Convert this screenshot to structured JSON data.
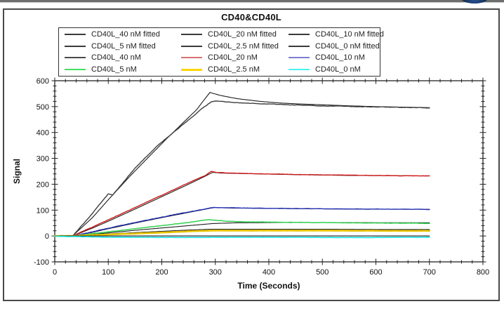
{
  "decor": {
    "top_accent_color": "#16335f",
    "top_rule_color": "#6e6e6e"
  },
  "chart_data": {
    "type": "line",
    "title": "CD40&CD40L",
    "xlabel": "Time (Seconds)",
    "ylabel": "Signal",
    "xlim": [
      0,
      800
    ],
    "ylim": [
      -100,
      600
    ],
    "x_ticks": [
      0,
      100,
      200,
      300,
      400,
      500,
      600,
      700,
      800
    ],
    "y_ticks": [
      -100,
      0,
      100,
      200,
      300,
      400,
      500,
      600
    ],
    "x_minor_step": 20,
    "y_minor_step": 20,
    "grid": false,
    "legend_position": "top-left",
    "legend": [
      {
        "label": "CD40L_40 nM fitted",
        "color": "#3a3a3a",
        "lw": 2
      },
      {
        "label": "CD40L_20 nM fitted",
        "color": "#3a3a3a",
        "lw": 2
      },
      {
        "label": "CD40L_10 nM fitted",
        "color": "#3a3a3a",
        "lw": 2
      },
      {
        "label": "CD40L_5 nM fitted",
        "color": "#3a3a3a",
        "lw": 2
      },
      {
        "label": "CD40L_2.5 nM fitted",
        "color": "#3a3a3a",
        "lw": 2
      },
      {
        "label": "CD40L_0 nM fitted",
        "color": "#3a3a3a",
        "lw": 2
      },
      {
        "label": "CD40L_40 nM",
        "color": "#4a4a4a",
        "lw": 2
      },
      {
        "label": "CD40L_20 nM",
        "color": "#d87272",
        "lw": 2
      },
      {
        "label": "CD40L_10 nM",
        "color": "#7e7ed2",
        "lw": 2
      },
      {
        "label": "CD40L_5 nM",
        "color": "#46e060",
        "lw": 2
      },
      {
        "label": "CD40L_2.5 nM",
        "color": "#ffd400",
        "lw": 3
      },
      {
        "label": "CD40L_0 nM",
        "color": "#4df2f2",
        "lw": 2
      }
    ],
    "series": [
      {
        "name": "CD40L_40 nM fitted",
        "role": "fitted",
        "color": "#1c1c1c",
        "width": 1.1,
        "noise": 0,
        "points": [
          [
            0,
            0
          ],
          [
            33,
            0
          ],
          [
            70,
            70
          ],
          [
            100,
            140
          ],
          [
            140,
            230
          ],
          [
            180,
            315
          ],
          [
            210,
            378
          ],
          [
            240,
            438
          ],
          [
            265,
            488
          ],
          [
            285,
            542
          ],
          [
            290,
            555
          ],
          [
            296,
            551
          ],
          [
            310,
            543
          ],
          [
            340,
            531
          ],
          [
            380,
            521
          ],
          [
            420,
            514
          ],
          [
            460,
            510
          ],
          [
            500,
            507
          ],
          [
            550,
            503
          ],
          [
            600,
            500
          ],
          [
            650,
            498
          ],
          [
            700,
            496
          ]
        ]
      },
      {
        "name": "CD40L_40 nM",
        "role": "raw",
        "color": "#3d3d3d",
        "width": 1.4,
        "noise": 2.0,
        "points": [
          [
            0,
            0
          ],
          [
            33,
            0
          ],
          [
            60,
            62
          ],
          [
            100,
            162
          ],
          [
            108,
            158
          ],
          [
            150,
            262
          ],
          [
            190,
            345
          ],
          [
            220,
            398
          ],
          [
            250,
            448
          ],
          [
            275,
            492
          ],
          [
            292,
            518
          ],
          [
            300,
            522
          ],
          [
            315,
            519
          ],
          [
            350,
            514
          ],
          [
            400,
            510
          ],
          [
            450,
            506
          ],
          [
            500,
            503
          ],
          [
            550,
            501
          ],
          [
            600,
            499
          ],
          [
            650,
            497
          ],
          [
            700,
            495
          ]
        ]
      },
      {
        "name": "CD40L_20 nM fitted",
        "role": "fitted",
        "color": "#1c1c1c",
        "width": 1.1,
        "noise": 0,
        "points": [
          [
            0,
            0
          ],
          [
            33,
            0
          ],
          [
            70,
            30
          ],
          [
            100,
            57
          ],
          [
            150,
            104
          ],
          [
            200,
            152
          ],
          [
            250,
            200
          ],
          [
            280,
            230
          ],
          [
            295,
            246
          ],
          [
            312,
            243
          ],
          [
            380,
            240
          ],
          [
            450,
            237
          ],
          [
            550,
            234
          ],
          [
            640,
            233
          ],
          [
            700,
            232
          ]
        ]
      },
      {
        "name": "CD40L_20 nM",
        "role": "raw",
        "color": "#cf1717",
        "width": 1.4,
        "noise": 1.6,
        "points": [
          [
            0,
            0
          ],
          [
            33,
            0
          ],
          [
            70,
            34
          ],
          [
            100,
            62
          ],
          [
            150,
            110
          ],
          [
            200,
            158
          ],
          [
            250,
            206
          ],
          [
            282,
            234
          ],
          [
            292,
            249
          ],
          [
            302,
            246
          ],
          [
            340,
            242
          ],
          [
            400,
            240
          ],
          [
            470,
            237
          ],
          [
            550,
            235
          ],
          [
            630,
            233
          ],
          [
            700,
            232
          ]
        ]
      },
      {
        "name": "CD40L_10 nM fitted",
        "role": "fitted",
        "color": "#1c1c1c",
        "width": 1.1,
        "noise": 0,
        "points": [
          [
            0,
            0
          ],
          [
            33,
            0
          ],
          [
            70,
            14
          ],
          [
            100,
            28
          ],
          [
            150,
            50
          ],
          [
            200,
            71
          ],
          [
            250,
            91
          ],
          [
            285,
            105
          ],
          [
            298,
            110
          ],
          [
            330,
            108
          ],
          [
            420,
            106
          ],
          [
            550,
            104
          ],
          [
            700,
            103
          ]
        ]
      },
      {
        "name": "CD40L_10 nM",
        "role": "raw",
        "color": "#2430b4",
        "width": 1.4,
        "noise": 1.4,
        "points": [
          [
            0,
            0
          ],
          [
            33,
            0
          ],
          [
            70,
            16
          ],
          [
            100,
            30
          ],
          [
            150,
            52
          ],
          [
            200,
            73
          ],
          [
            250,
            93
          ],
          [
            283,
            105
          ],
          [
            296,
            111
          ],
          [
            320,
            109
          ],
          [
            400,
            107
          ],
          [
            500,
            105
          ],
          [
            600,
            104
          ],
          [
            700,
            103
          ]
        ]
      },
      {
        "name": "CD40L_5 nM fitted",
        "role": "fitted",
        "color": "#1c1c1c",
        "width": 1.1,
        "noise": 0,
        "points": [
          [
            0,
            0
          ],
          [
            33,
            0
          ],
          [
            70,
            6
          ],
          [
            100,
            12
          ],
          [
            150,
            22
          ],
          [
            200,
            31
          ],
          [
            250,
            40
          ],
          [
            295,
            48
          ],
          [
            340,
            51
          ],
          [
            420,
            52
          ],
          [
            520,
            52
          ],
          [
            620,
            51
          ],
          [
            700,
            51
          ]
        ]
      },
      {
        "name": "CD40L_5 nM",
        "role": "raw",
        "color": "#2ed04e",
        "width": 1.5,
        "noise": 1.2,
        "points": [
          [
            0,
            0
          ],
          [
            33,
            0
          ],
          [
            70,
            9
          ],
          [
            100,
            16
          ],
          [
            150,
            28
          ],
          [
            200,
            40
          ],
          [
            250,
            52
          ],
          [
            272,
            60
          ],
          [
            286,
            63
          ],
          [
            300,
            61
          ],
          [
            322,
            57
          ],
          [
            355,
            55
          ],
          [
            420,
            53
          ],
          [
            500,
            52
          ],
          [
            600,
            50
          ],
          [
            700,
            49
          ]
        ]
      },
      {
        "name": "CD40L_2.5 nM fitted",
        "role": "fitted",
        "color": "#1c1c1c",
        "width": 1.1,
        "noise": 0,
        "points": [
          [
            0,
            0
          ],
          [
            33,
            0
          ],
          [
            100,
            8
          ],
          [
            170,
            15
          ],
          [
            240,
            22
          ],
          [
            290,
            26
          ],
          [
            360,
            26
          ],
          [
            500,
            26
          ],
          [
            620,
            25
          ],
          [
            700,
            25
          ]
        ]
      },
      {
        "name": "CD40L_2.5 nM",
        "role": "raw",
        "color": "#e9c400",
        "width": 2.6,
        "noise": 0.9,
        "points": [
          [
            0,
            0
          ],
          [
            33,
            0
          ],
          [
            100,
            6
          ],
          [
            170,
            11
          ],
          [
            240,
            17
          ],
          [
            295,
            21
          ],
          [
            380,
            21
          ],
          [
            500,
            21
          ],
          [
            620,
            20
          ],
          [
            700,
            20
          ]
        ]
      },
      {
        "name": "CD40L_0 nM fitted",
        "role": "fitted",
        "color": "#1c1c1c",
        "width": 1.1,
        "noise": 0,
        "points": [
          [
            0,
            0
          ],
          [
            700,
            0
          ]
        ]
      },
      {
        "name": "CD40L_0 nM",
        "role": "raw",
        "color": "#17e3e3",
        "width": 1.6,
        "noise": 0.9,
        "points": [
          [
            0,
            -1
          ],
          [
            33,
            -2
          ],
          [
            80,
            -4
          ],
          [
            150,
            -5
          ],
          [
            250,
            -6
          ],
          [
            300,
            -5
          ],
          [
            420,
            -5
          ],
          [
            540,
            -6
          ],
          [
            700,
            -5
          ]
        ]
      }
    ]
  }
}
